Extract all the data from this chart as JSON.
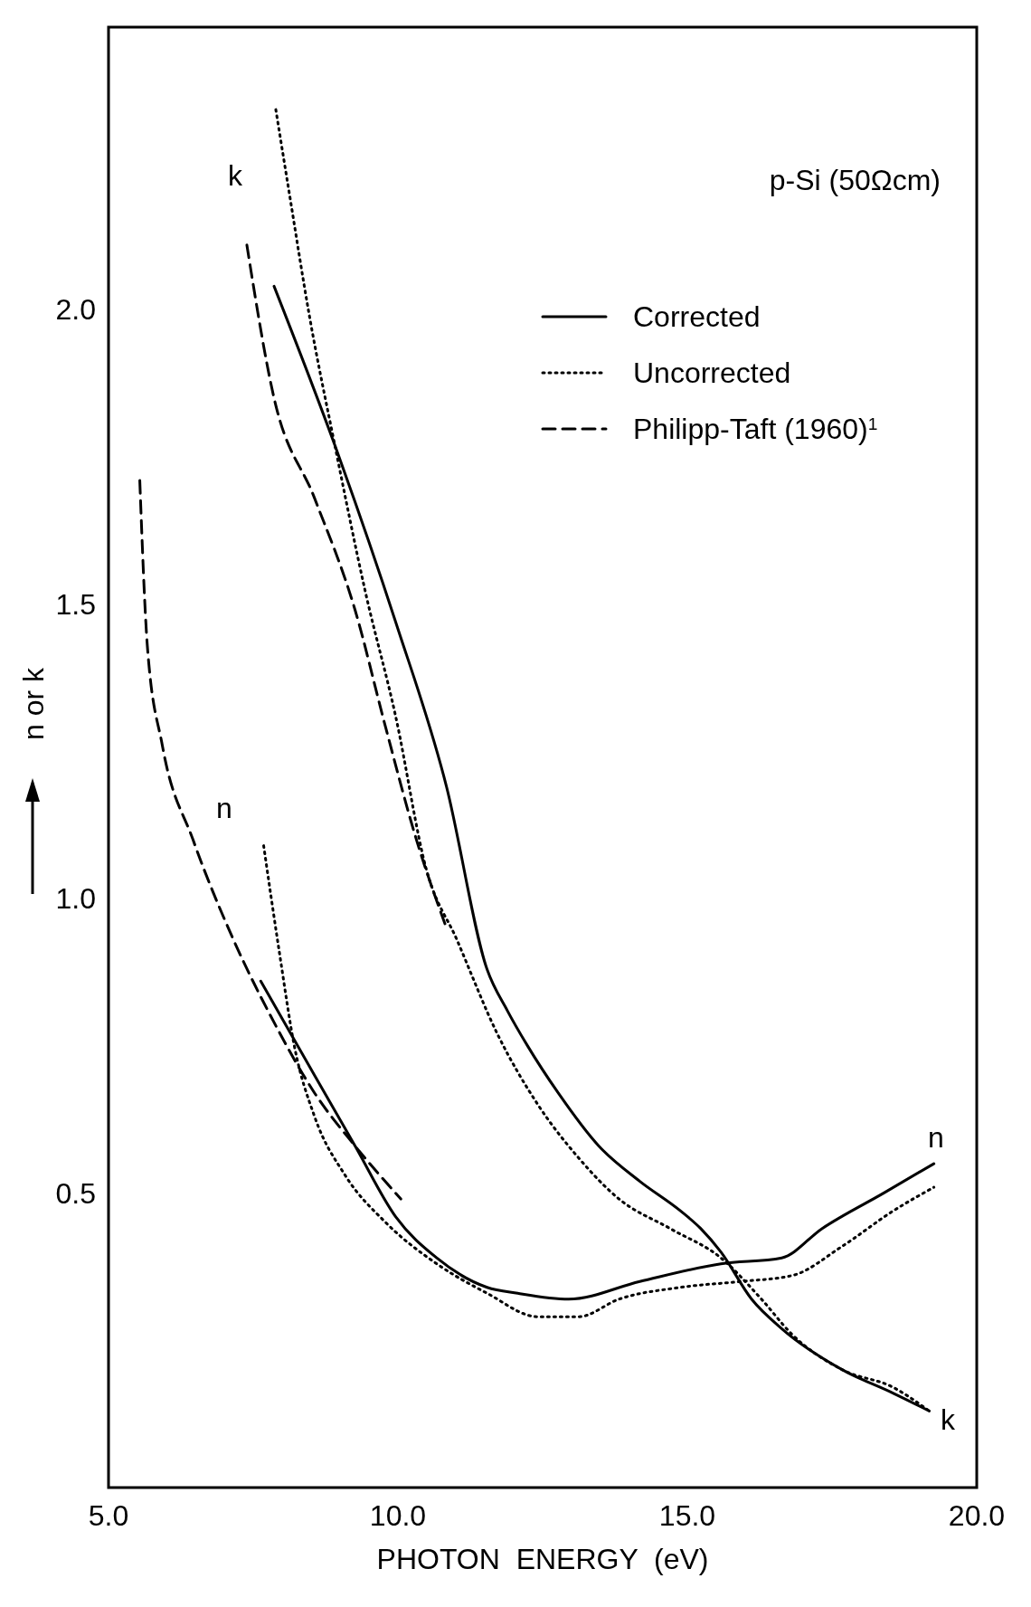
{
  "chart_data": {
    "type": "line",
    "xlabel": "PHOTON  ENERGY  (eV)",
    "ylabel": "n or k",
    "xlim": [
      5,
      20
    ],
    "ylim": [
      0,
      2.48
    ],
    "xticks": [
      {
        "value": 5,
        "label": "5.0"
      },
      {
        "value": 10,
        "label": "10.0"
      },
      {
        "value": 15,
        "label": "15.0"
      },
      {
        "value": 20,
        "label": "20.0"
      }
    ],
    "yticks": [
      {
        "value": 0.5,
        "label": "0.5"
      },
      {
        "value": 1,
        "label": "1.0"
      },
      {
        "value": 1.5,
        "label": "1.5"
      },
      {
        "value": 2,
        "label": "2.0"
      }
    ],
    "grid": false,
    "legend": "top right",
    "annotations": [
      "p-Si (50Ωcm)",
      "k",
      "n",
      "n",
      "k"
    ],
    "series": [
      {
        "name": "Corrected",
        "color": "#000000",
        "line_style": "solid",
        "x": [
          7.86,
          8.91,
          9.96,
          10.84,
          11.54,
          11.89,
          12.24,
          12.77,
          13.47,
          14.18,
          14.88,
          15.23,
          15.58,
          16.11,
          16.63,
          17.68,
          18.56,
          19.18
        ],
        "values": [
          2.04,
          1.77,
          1.47,
          1.19,
          0.88,
          0.81,
          0.75,
          0.67,
          0.58,
          0.52,
          0.47,
          0.44,
          0.4,
          0.32,
          0.27,
          0.2,
          0.16,
          0.13
        ]
      },
      {
        "color": "#000000",
        "line_style": "solid",
        "x": [
          7.63,
          8.56,
          9.26,
          9.96,
          10.67,
          11.54,
          12.07,
          12.95,
          14.18,
          15.58,
          16.63,
          17.33,
          18.39,
          19.26
        ],
        "values": [
          0.86,
          0.7,
          0.58,
          0.46,
          0.39,
          0.34,
          0.33,
          0.32,
          0.35,
          0.38,
          0.39,
          0.44,
          0.5,
          0.55
        ]
      },
      {
        "name": "Uncorrected",
        "color": "#000000",
        "line_style": "dotted",
        "x": [
          7.89,
          8.12,
          8.47,
          8.91,
          9.44,
          9.96,
          10.49,
          11.02,
          11.72,
          12.42,
          13.12,
          13.82,
          14.7,
          15.58,
          16.28,
          16.81,
          17.68,
          18.56,
          19.18
        ],
        "values": [
          2.34,
          2.2,
          1.99,
          1.77,
          1.52,
          1.31,
          1.05,
          0.93,
          0.77,
          0.65,
          0.56,
          0.49,
          0.44,
          0.39,
          0.32,
          0.26,
          0.2,
          0.17,
          0.13
        ]
      },
      {
        "color": "#000000",
        "line_style": "dotted",
        "x": [
          7.68,
          7.95,
          8.21,
          8.56,
          9.09,
          9.79,
          10.67,
          11.54,
          12.42,
          13.12,
          13.82,
          14.88,
          15.93,
          16.81,
          17.68,
          18.56,
          19.26
        ],
        "values": [
          1.09,
          0.91,
          0.75,
          0.63,
          0.53,
          0.45,
          0.38,
          0.33,
          0.29,
          0.29,
          0.32,
          0.34,
          0.35,
          0.36,
          0.41,
          0.47,
          0.51
        ]
      },
      {
        "name": "Philipp-Taft (1960)$^{1}$",
        "color": "#000000",
        "line_style": "dashed",
        "x": [
          7.39,
          7.86,
          8.56,
          9.26,
          9.79,
          10.32,
          10.84
        ],
        "values": [
          2.11,
          1.85,
          1.68,
          1.49,
          1.29,
          1.1,
          0.95
        ]
      },
      {
        "color": "#000000",
        "line_style": "dashed",
        "x": [
          5.54,
          5.67,
          5.93,
          6.46,
          7.16,
          7.86,
          8.56,
          9.26,
          10.05
        ],
        "values": [
          1.71,
          1.43,
          1.26,
          1.1,
          0.93,
          0.79,
          0.67,
          0.58,
          0.49
        ]
      }
    ]
  }
}
